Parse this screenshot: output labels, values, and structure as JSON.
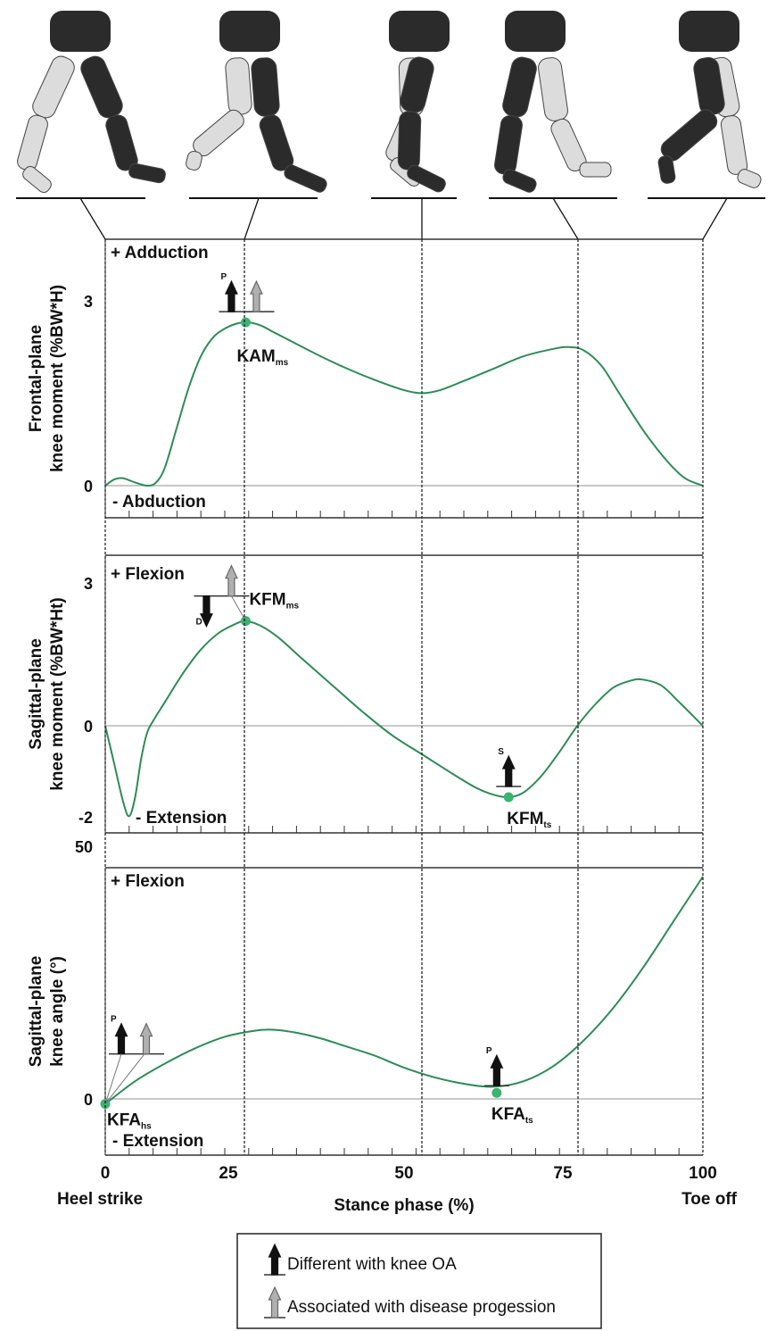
{
  "chart_data": [
    {
      "type": "line",
      "ylabel_line1": "Frontal-plane",
      "ylabel_line2": "knee moment (%BW*H)",
      "yticks": [
        "3",
        "0"
      ],
      "ylim": [
        -0.25,
        4
      ],
      "positive_label": "+ Adduction",
      "negative_label": "- Abduction",
      "zero_line": true,
      "series": [
        {
          "x": [
            0,
            1.5,
            3,
            5,
            7,
            8.5,
            10,
            12,
            14,
            16,
            18,
            20,
            22,
            24,
            26,
            28,
            30,
            35,
            40,
            45,
            50,
            53,
            56,
            60,
            65,
            70,
            75,
            77.5,
            80,
            83,
            86,
            90,
            94,
            97,
            100
          ],
          "y": [
            0,
            0.1,
            0.12,
            0.05,
            0,
            0.05,
            0.3,
            0.95,
            1.6,
            2.1,
            2.4,
            2.55,
            2.63,
            2.65,
            2.6,
            2.5,
            2.4,
            2.15,
            1.92,
            1.72,
            1.55,
            1.5,
            1.55,
            1.7,
            1.9,
            2.1,
            2.22,
            2.25,
            2.2,
            1.95,
            1.5,
            0.9,
            0.4,
            0.12,
            0
          ],
          "color": "#2e8b57"
        }
      ],
      "markers": [
        {
          "x": 23.5,
          "y": 2.65,
          "label_main": "KAM",
          "label_sub": "ms",
          "arrows": [
            {
              "type": "black",
              "dir": "up",
              "tag": "P"
            },
            {
              "type": "gray",
              "dir": "up"
            }
          ]
        }
      ]
    },
    {
      "type": "line",
      "ylabel_line1": "Sagittal-plane",
      "ylabel_line2": "knee moment (%BW*Ht)",
      "yticks": [
        "3",
        "0",
        "-2"
      ],
      "ylim": [
        -2.15,
        3.6
      ],
      "positive_label": "+ Flexion",
      "negative_label": "- Extension",
      "zero_line": true,
      "series": [
        {
          "x": [
            0,
            1.5,
            3,
            4,
            5,
            6,
            7,
            8,
            10,
            13,
            16,
            19,
            22,
            23.5,
            26,
            29,
            33,
            38,
            43,
            48,
            53,
            58,
            62,
            65,
            67.5,
            70,
            73,
            76,
            79,
            82,
            85,
            88,
            90,
            93,
            96,
            100
          ],
          "y": [
            0,
            -0.8,
            -1.6,
            -1.9,
            -1.5,
            -0.7,
            -0.15,
            0.1,
            0.5,
            1.1,
            1.6,
            1.95,
            2.15,
            2.2,
            2.1,
            1.85,
            1.4,
            0.85,
            0.3,
            -0.2,
            -0.6,
            -1.0,
            -1.3,
            -1.45,
            -1.5,
            -1.4,
            -1.05,
            -0.55,
            0,
            0.45,
            0.8,
            0.95,
            0.97,
            0.85,
            0.5,
            0
          ],
          "color": "#2e8b57"
        }
      ],
      "markers": [
        {
          "x": 23.5,
          "y": 2.2,
          "label_main": "KFM",
          "label_sub": "ms",
          "arrows": [
            {
              "type": "black",
              "dir": "down",
              "tag": "D"
            },
            {
              "type": "gray",
              "dir": "up"
            }
          ]
        },
        {
          "x": 67.5,
          "y": -1.5,
          "label_main": "KFM",
          "label_sub": "ts",
          "arrows": [
            {
              "type": "black",
              "dir": "up",
              "tag": "S"
            }
          ]
        }
      ]
    },
    {
      "type": "line",
      "ylabel_line1": "Sagittal-plane",
      "ylabel_line2": "knee angle (°)",
      "yticks": [
        "50",
        "0"
      ],
      "ylim": [
        -8,
        50
      ],
      "positive_label": "+ Flexion",
      "negative_label": "- Extension",
      "zero_line": true,
      "xticks": [
        "0",
        "25",
        "50",
        "75",
        "100"
      ],
      "xlabel": "Stance phase (%)",
      "x_start_label": "Heel strike",
      "x_end_label": "Toe off",
      "series": [
        {
          "x": [
            0,
            5,
            10,
            15,
            20,
            25,
            28,
            32,
            36,
            40,
            45,
            50,
            55,
            60,
            65,
            70,
            75,
            80,
            85,
            90,
            95,
            100
          ],
          "y": [
            -1,
            3.5,
            7,
            10,
            12.3,
            13.5,
            13.7,
            13.1,
            12,
            10.5,
            8.6,
            6.2,
            4.3,
            3,
            2.4,
            3.5,
            6.5,
            11.5,
            18,
            26,
            35,
            44
          ],
          "color": "#2e8b57"
        }
      ],
      "markers": [
        {
          "x": 0,
          "y": -1,
          "label_main": "KFA",
          "label_sub": "hs",
          "arrows": [
            {
              "type": "black",
              "dir": "up",
              "tag": "P"
            },
            {
              "type": "gray",
              "dir": "up"
            }
          ]
        },
        {
          "x": 65.5,
          "y": 1.2,
          "label_main": "KFA",
          "label_sub": "ts",
          "arrows": [
            {
              "type": "black",
              "dir": "up",
              "tag": "P"
            }
          ]
        }
      ]
    }
  ],
  "phase_lines_x": [
    23.5,
    53,
    79,
    100
  ],
  "legend": {
    "items": [
      {
        "type": "black",
        "label": "Different with knee OA"
      },
      {
        "type": "gray",
        "label": "Associated with disease progession"
      }
    ]
  },
  "colors": {
    "curve": "#2e8b57",
    "marker": "#3cb371",
    "arrow_black": "#111111",
    "arrow_gray": "#b0b0b0",
    "leg_dark": "#2b2b2b",
    "leg_light": "#dcdcdc"
  }
}
